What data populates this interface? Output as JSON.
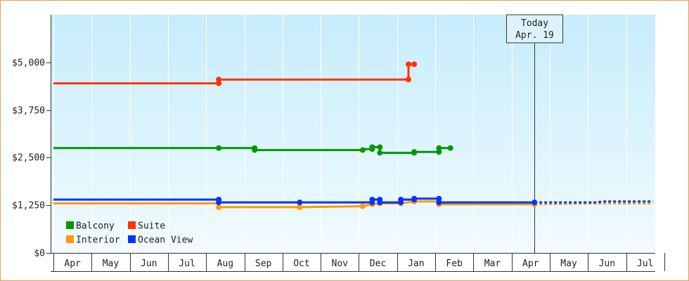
{
  "chart_data": {
    "type": "line",
    "title": "",
    "xlabel": "",
    "ylabel": "",
    "ylim": [
      0,
      6250
    ],
    "y_ticks": [
      {
        "value": 0,
        "label": "$0"
      },
      {
        "value": 1250,
        "label": "$1,250"
      },
      {
        "value": 2500,
        "label": "$2,500"
      },
      {
        "value": 3750,
        "label": "$3,750"
      },
      {
        "value": 5000,
        "label": "$5,000"
      }
    ],
    "months": [
      "Apr",
      "May",
      "Jun",
      "Jul",
      "Aug",
      "Sep",
      "Oct",
      "Nov",
      "Dec",
      "Jan",
      "Feb",
      "Mar",
      "Apr",
      "May",
      "Jun",
      "Jul"
    ],
    "today": {
      "line1": "Today",
      "line2": "Apr. 19",
      "x": 12.6
    },
    "legend_placement": "bottom-left",
    "series": [
      {
        "name": "Balcony",
        "color": "#009900",
        "points": [
          [
            0,
            2750
          ],
          [
            4.33,
            2750
          ],
          [
            5.27,
            2750
          ],
          [
            5.27,
            2700
          ],
          [
            8.1,
            2700
          ],
          [
            8.1,
            2725
          ],
          [
            8.35,
            2725
          ],
          [
            8.35,
            2775
          ],
          [
            8.55,
            2775
          ],
          [
            8.55,
            2625
          ],
          [
            9.45,
            2625
          ],
          [
            9.45,
            2650
          ],
          [
            10.1,
            2650
          ],
          [
            10.1,
            2750
          ],
          [
            10.4,
            2750
          ]
        ],
        "markers": [
          [
            4.33,
            2750
          ],
          [
            5.27,
            2750
          ],
          [
            5.27,
            2700
          ],
          [
            8.1,
            2700
          ],
          [
            8.35,
            2725
          ],
          [
            8.35,
            2775
          ],
          [
            8.55,
            2775
          ],
          [
            8.55,
            2625
          ],
          [
            9.45,
            2625
          ],
          [
            9.45,
            2650
          ],
          [
            10.1,
            2650
          ],
          [
            10.1,
            2750
          ],
          [
            10.4,
            2750
          ]
        ]
      },
      {
        "name": "Suite",
        "color": "#ff3300",
        "points": [
          [
            0,
            4450
          ],
          [
            4.33,
            4450
          ],
          [
            4.33,
            4550
          ],
          [
            9.3,
            4550
          ],
          [
            9.3,
            4950
          ],
          [
            9.45,
            4950
          ]
        ],
        "markers": [
          [
            4.33,
            4450
          ],
          [
            4.33,
            4550
          ],
          [
            9.3,
            4550
          ],
          [
            9.3,
            4950
          ],
          [
            9.45,
            4950
          ]
        ]
      },
      {
        "name": "Interior",
        "color": "#ff9900",
        "points": [
          [
            0,
            1300
          ],
          [
            4.33,
            1300
          ],
          [
            4.33,
            1200
          ],
          [
            6.45,
            1200
          ],
          [
            8.1,
            1225
          ],
          [
            8.35,
            1275
          ],
          [
            8.55,
            1300
          ],
          [
            9.1,
            1300
          ],
          [
            9.45,
            1350
          ],
          [
            10.1,
            1350
          ],
          [
            10.1,
            1275
          ],
          [
            12.6,
            1275
          ]
        ],
        "markers": [
          [
            4.33,
            1200
          ],
          [
            6.45,
            1200
          ],
          [
            8.1,
            1225
          ],
          [
            8.35,
            1275
          ],
          [
            8.55,
            1300
          ],
          [
            9.1,
            1300
          ],
          [
            9.45,
            1350
          ],
          [
            10.1,
            1275
          ],
          [
            12.6,
            1275
          ]
        ],
        "forecast": [
          [
            12.6,
            1275
          ],
          [
            14.4,
            1300
          ],
          [
            15.7,
            1300
          ]
        ]
      },
      {
        "name": "Ocean View",
        "color": "#0033ff",
        "points": [
          [
            0,
            1400
          ],
          [
            4.33,
            1400
          ],
          [
            4.33,
            1325
          ],
          [
            8.35,
            1325
          ],
          [
            8.35,
            1400
          ],
          [
            8.55,
            1400
          ],
          [
            8.55,
            1325
          ],
          [
            9.1,
            1325
          ],
          [
            9.1,
            1400
          ],
          [
            9.45,
            1400
          ],
          [
            9.45,
            1425
          ],
          [
            10.1,
            1425
          ],
          [
            10.1,
            1325
          ],
          [
            12.6,
            1325
          ]
        ],
        "markers": [
          [
            4.33,
            1400
          ],
          [
            4.33,
            1325
          ],
          [
            6.45,
            1325
          ],
          [
            8.35,
            1325
          ],
          [
            8.35,
            1400
          ],
          [
            8.55,
            1400
          ],
          [
            8.55,
            1325
          ],
          [
            9.1,
            1325
          ],
          [
            9.1,
            1400
          ],
          [
            9.45,
            1400
          ],
          [
            9.45,
            1425
          ],
          [
            10.1,
            1425
          ],
          [
            10.1,
            1325
          ],
          [
            12.6,
            1325
          ]
        ],
        "forecast": [
          [
            12.6,
            1325
          ],
          [
            14.2,
            1325
          ],
          [
            14.4,
            1350
          ],
          [
            15.7,
            1350
          ]
        ]
      }
    ]
  }
}
